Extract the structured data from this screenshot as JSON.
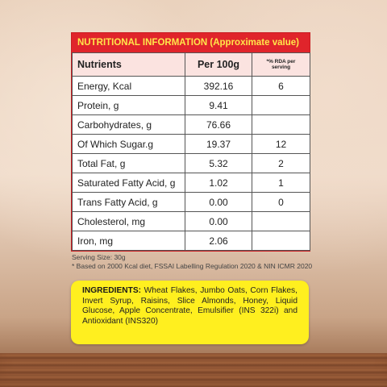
{
  "header": {
    "title": "NUTRITIONAL INFORMATION (Approximate value)"
  },
  "table": {
    "columns": [
      "Nutrients",
      "Per 100g",
      "*% RDA per serving"
    ],
    "rows": [
      [
        "Energy, Kcal",
        "392.16",
        "6"
      ],
      [
        "Protein, g",
        "9.41",
        null
      ],
      [
        "Carbohydrates, g",
        "76.66",
        null
      ],
      [
        "Of Which Sugar.g",
        "19.37",
        "12"
      ],
      [
        "Total Fat, g",
        "5.32",
        "2"
      ],
      [
        "Saturated Fatty Acid, g",
        "1.02",
        "1"
      ],
      [
        "Trans Fatty Acid, g",
        "0.00",
        "0"
      ],
      [
        "Cholesterol, mg",
        "0.00",
        null
      ],
      [
        "Iron, mg",
        "2.06",
        null
      ]
    ]
  },
  "notes": {
    "serving": "Serving Size: 30g",
    "basis": "* Based on 2000 Kcal diet, FSSAI Labelling Regulation 2020 & NIN ICMR 2020"
  },
  "ingredients": {
    "label": "INGREDIENTS:",
    "text": "Wheat Flakes, Jumbo Oats, Corn Flakes, Invert Syrup, Raisins, Slice Almonds, Honey, Liquid Glucose, Apple Concentrate, Emulsifier (INS 322i) and Antioxidant (INS320)"
  }
}
